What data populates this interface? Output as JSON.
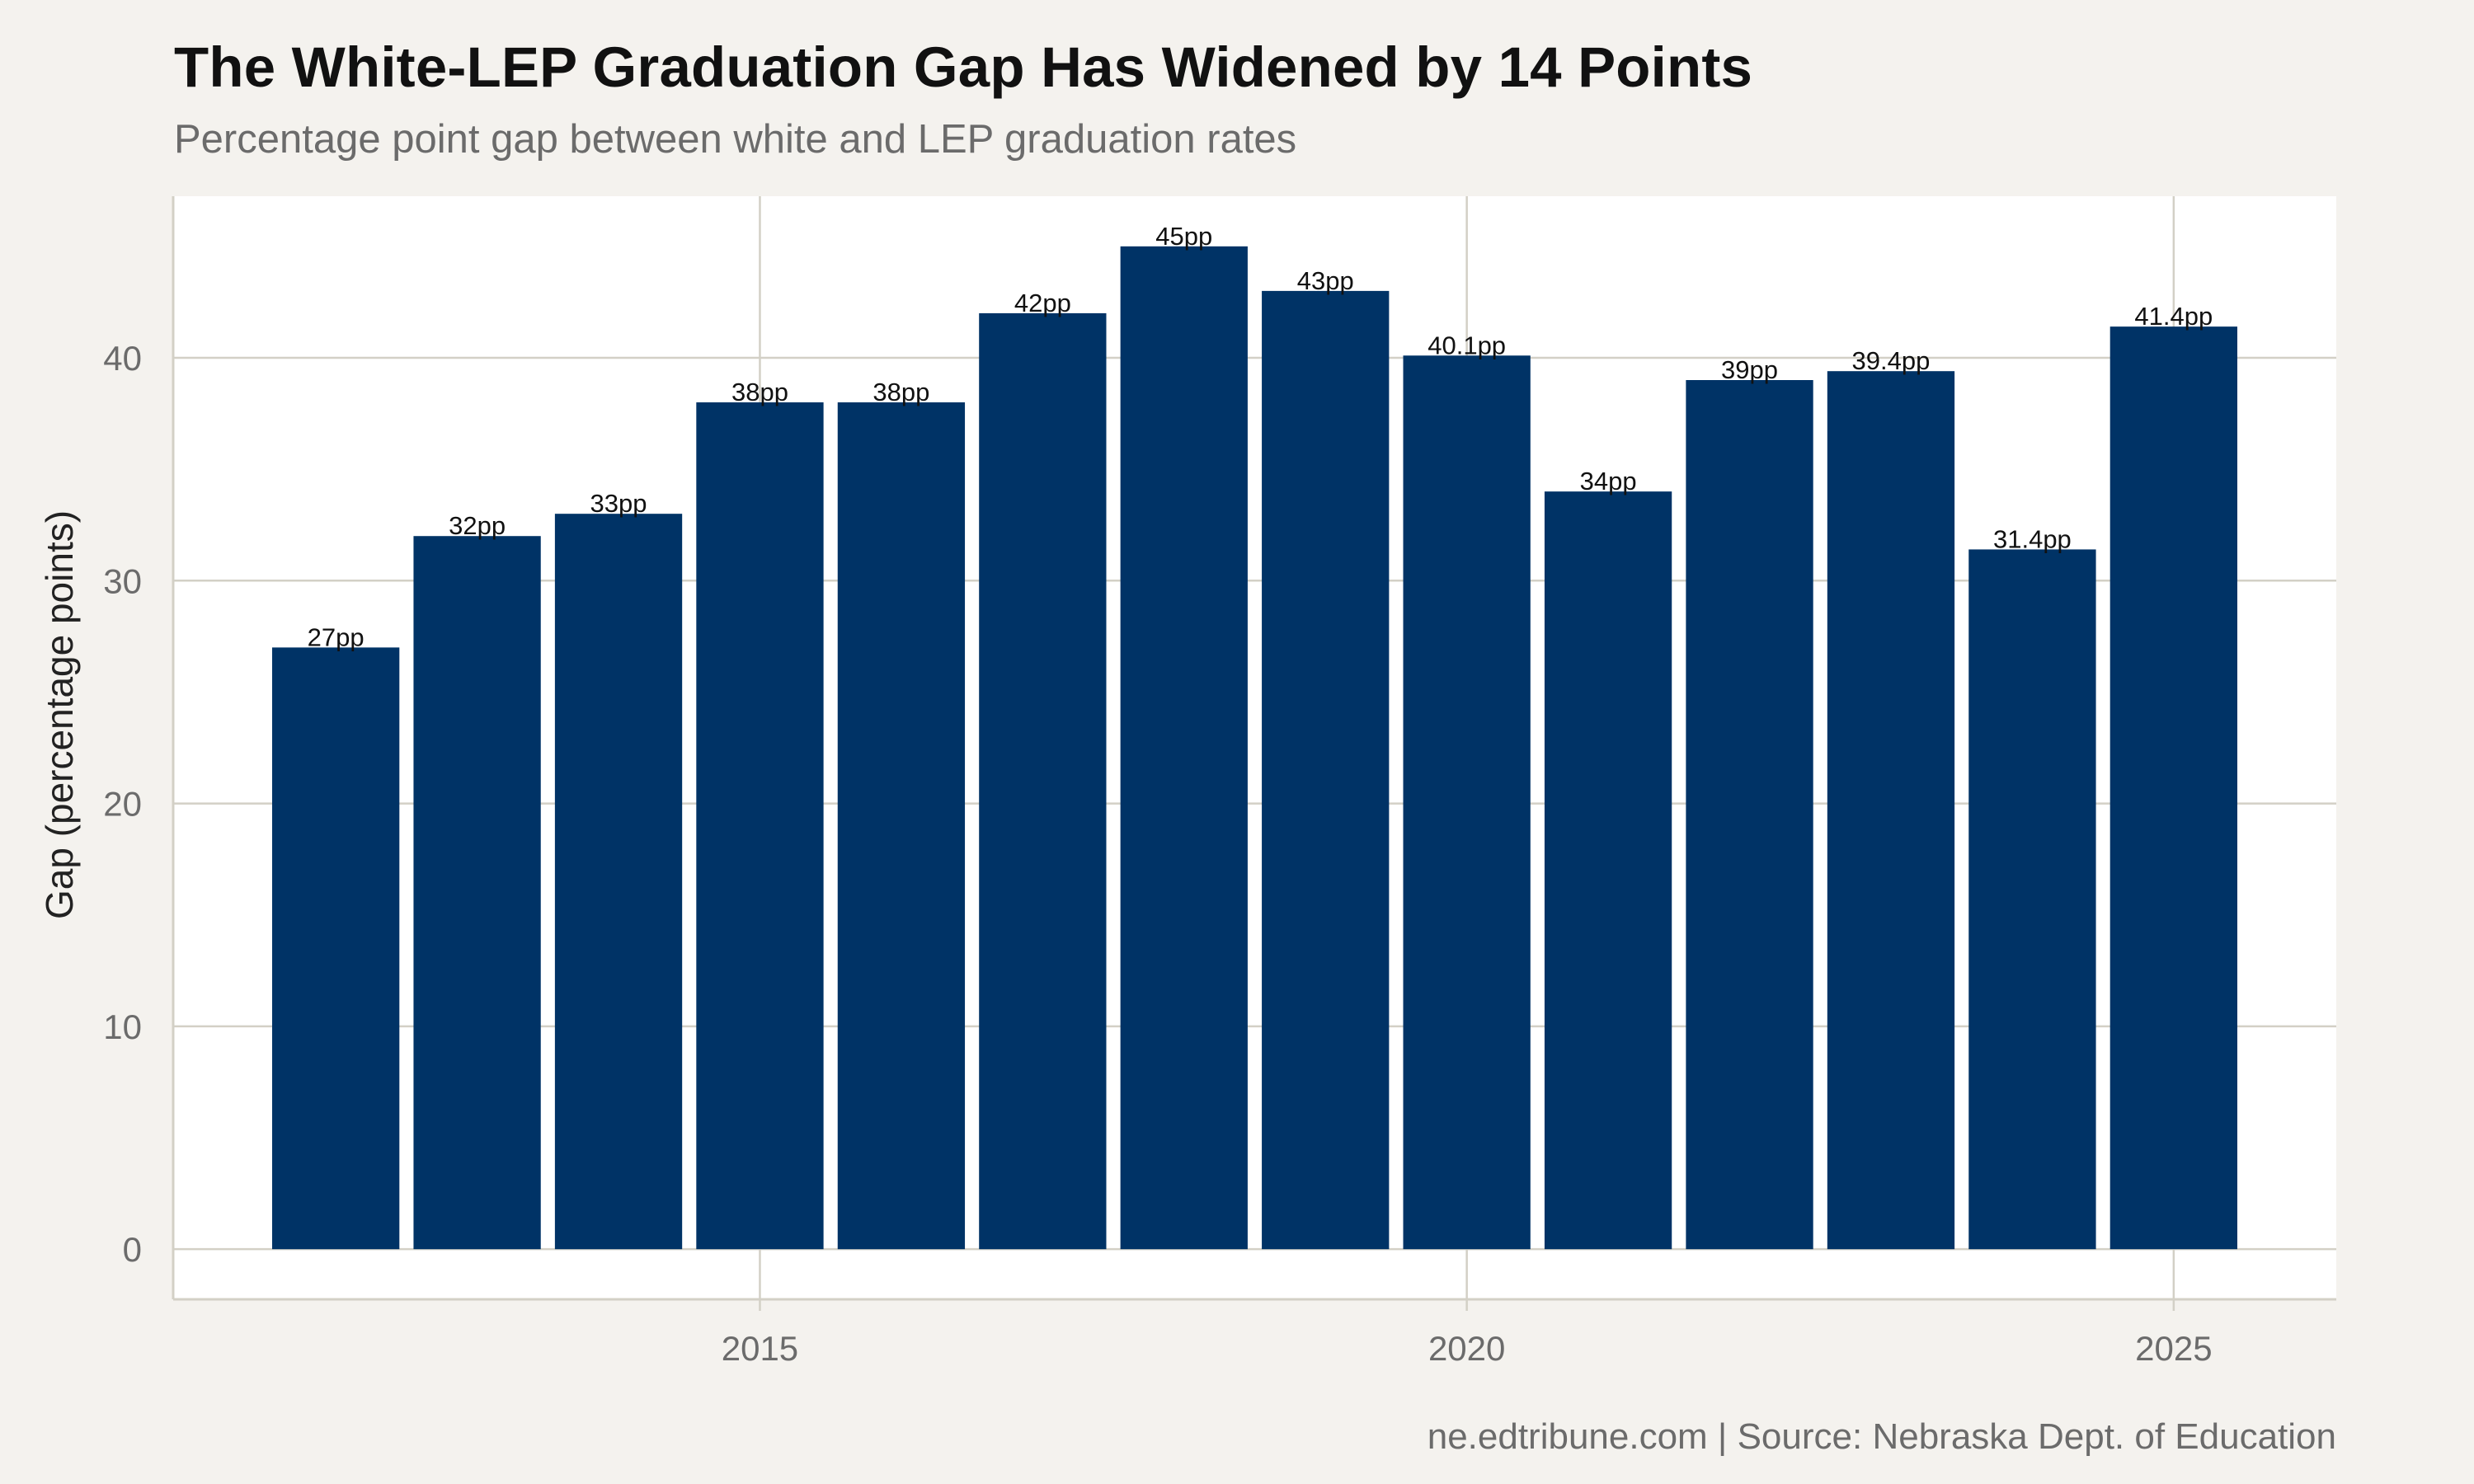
{
  "title": "The White-LEP Graduation Gap Has Widened by 14 Points",
  "subtitle": "Percentage point gap between white and LEP graduation rates",
  "caption": "ne.edtribune.com | Source: Nebraska Dept. of Education",
  "colors": {
    "bar": "#003366",
    "background": "#f4f2ee",
    "panel": "#ffffff",
    "grid": "#d3d0c6",
    "axis_text": "#6b6b6b"
  },
  "chart_data": {
    "type": "bar",
    "title": "The White-LEP Graduation Gap Has Widened by 14 Points",
    "subtitle": "Percentage point gap between white and LEP graduation rates",
    "xlabel": "",
    "ylabel": "Gap (percentage points)",
    "x": [
      2012,
      2013,
      2014,
      2015,
      2016,
      2017,
      2018,
      2019,
      2020,
      2021,
      2022,
      2023,
      2024,
      2025
    ],
    "values": [
      27,
      32,
      33,
      38,
      38,
      42,
      45,
      43,
      40.1,
      34,
      39,
      39.4,
      31.4,
      41.4
    ],
    "labels": [
      "27pp",
      "32pp",
      "33pp",
      "38pp",
      "38pp",
      "42pp",
      "45pp",
      "43pp",
      "40.1pp",
      "34pp",
      "39pp",
      "39.4pp",
      "31.4pp",
      "41.4pp"
    ],
    "xlim": [
      2010.85,
      2026.15
    ],
    "ylim": [
      -2.25,
      47.25
    ],
    "xticks": [
      2015,
      2020,
      2025
    ],
    "xtick_labels": [
      "2015",
      "2020",
      "2025"
    ],
    "yticks": [
      0,
      10,
      20,
      30,
      40
    ],
    "ytick_labels": [
      "0",
      "10",
      "20",
      "30",
      "40"
    ],
    "grid": true,
    "legend": "none"
  }
}
